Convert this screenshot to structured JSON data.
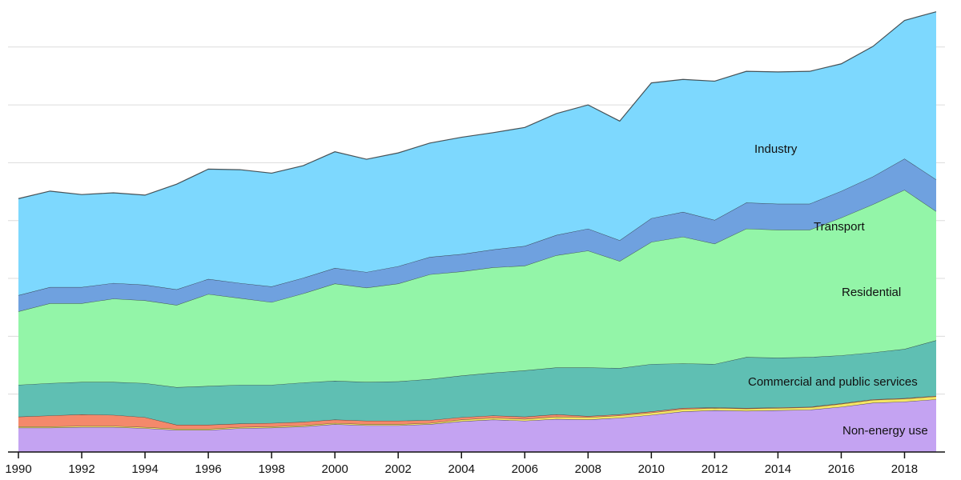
{
  "chart_data": {
    "type": "area",
    "stacked": true,
    "title": "",
    "xlabel": "",
    "ylabel": "",
    "x": [
      1990,
      1991,
      1992,
      1993,
      1994,
      1995,
      1996,
      1997,
      1998,
      1999,
      2000,
      2001,
      2002,
      2003,
      2004,
      2005,
      2006,
      2007,
      2008,
      2009,
      2010,
      2011,
      2012,
      2013,
      2014,
      2015,
      2016,
      2017,
      2018,
      2019
    ],
    "x_ticks": [
      1990,
      1992,
      1994,
      1996,
      1998,
      2000,
      2002,
      2004,
      2006,
      2008,
      2010,
      2012,
      2014,
      2016,
      2018
    ],
    "y_gridlines": [
      0,
      1,
      2,
      3,
      4,
      5,
      6,
      7
    ],
    "ylim": [
      0,
      7.55
    ],
    "grid": true,
    "y_tick_labels_shown": false,
    "legend": "inline labels",
    "series": [
      {
        "name": "Non-energy use",
        "color": "#c4a3f2",
        "values": [
          0.42,
          0.42,
          0.43,
          0.43,
          0.41,
          0.38,
          0.38,
          0.41,
          0.42,
          0.44,
          0.48,
          0.46,
          0.46,
          0.48,
          0.53,
          0.56,
          0.54,
          0.57,
          0.56,
          0.59,
          0.64,
          0.7,
          0.72,
          0.71,
          0.72,
          0.73,
          0.78,
          0.85,
          0.87,
          0.91
        ]
      },
      {
        "name": "",
        "color": "#f5e663",
        "values": [
          0.02,
          0.02,
          0.02,
          0.02,
          0.02,
          0.02,
          0.02,
          0.02,
          0.02,
          0.02,
          0.02,
          0.02,
          0.02,
          0.02,
          0.03,
          0.03,
          0.03,
          0.04,
          0.04,
          0.04,
          0.04,
          0.04,
          0.04,
          0.04,
          0.04,
          0.04,
          0.05,
          0.05,
          0.05,
          0.05
        ]
      },
      {
        "name": "",
        "color": "#f4896b",
        "values": [
          0.17,
          0.19,
          0.2,
          0.19,
          0.17,
          0.07,
          0.07,
          0.06,
          0.06,
          0.06,
          0.06,
          0.06,
          0.06,
          0.05,
          0.04,
          0.04,
          0.04,
          0.04,
          0.02,
          0.02,
          0.02,
          0.02,
          0.01,
          0.01,
          0.01,
          0.01,
          0.01,
          0.01,
          0.01,
          0.01
        ]
      },
      {
        "name": "Commercial and public services",
        "color": "#5fbfb3",
        "values": [
          0.55,
          0.56,
          0.56,
          0.57,
          0.59,
          0.65,
          0.67,
          0.67,
          0.66,
          0.68,
          0.67,
          0.67,
          0.68,
          0.71,
          0.72,
          0.74,
          0.8,
          0.81,
          0.84,
          0.8,
          0.82,
          0.77,
          0.75,
          0.88,
          0.86,
          0.86,
          0.83,
          0.81,
          0.85,
          0.96
        ]
      },
      {
        "name": "Residential",
        "color": "#93f5a8",
        "values": [
          1.27,
          1.38,
          1.36,
          1.44,
          1.43,
          1.42,
          1.59,
          1.5,
          1.43,
          1.54,
          1.68,
          1.63,
          1.69,
          1.81,
          1.8,
          1.82,
          1.81,
          1.94,
          2.02,
          1.85,
          2.11,
          2.19,
          2.08,
          2.22,
          2.21,
          2.2,
          2.38,
          2.56,
          2.75,
          2.23
        ]
      },
      {
        "name": "Transport",
        "color": "#6fa1df",
        "values": [
          0.28,
          0.28,
          0.28,
          0.27,
          0.27,
          0.27,
          0.26,
          0.26,
          0.27,
          0.27,
          0.27,
          0.27,
          0.3,
          0.3,
          0.3,
          0.31,
          0.34,
          0.35,
          0.38,
          0.36,
          0.41,
          0.43,
          0.41,
          0.45,
          0.45,
          0.45,
          0.46,
          0.48,
          0.54,
          0.55
        ]
      },
      {
        "name": "Industry",
        "color": "#7dd8fe",
        "values": [
          1.67,
          1.66,
          1.6,
          1.56,
          1.55,
          1.82,
          1.9,
          1.96,
          1.96,
          1.94,
          2.01,
          1.95,
          1.96,
          1.97,
          2.02,
          2.02,
          2.05,
          2.1,
          2.14,
          2.06,
          2.34,
          2.29,
          2.4,
          2.27,
          2.28,
          2.29,
          2.2,
          2.25,
          2.39,
          2.9
        ]
      }
    ]
  }
}
